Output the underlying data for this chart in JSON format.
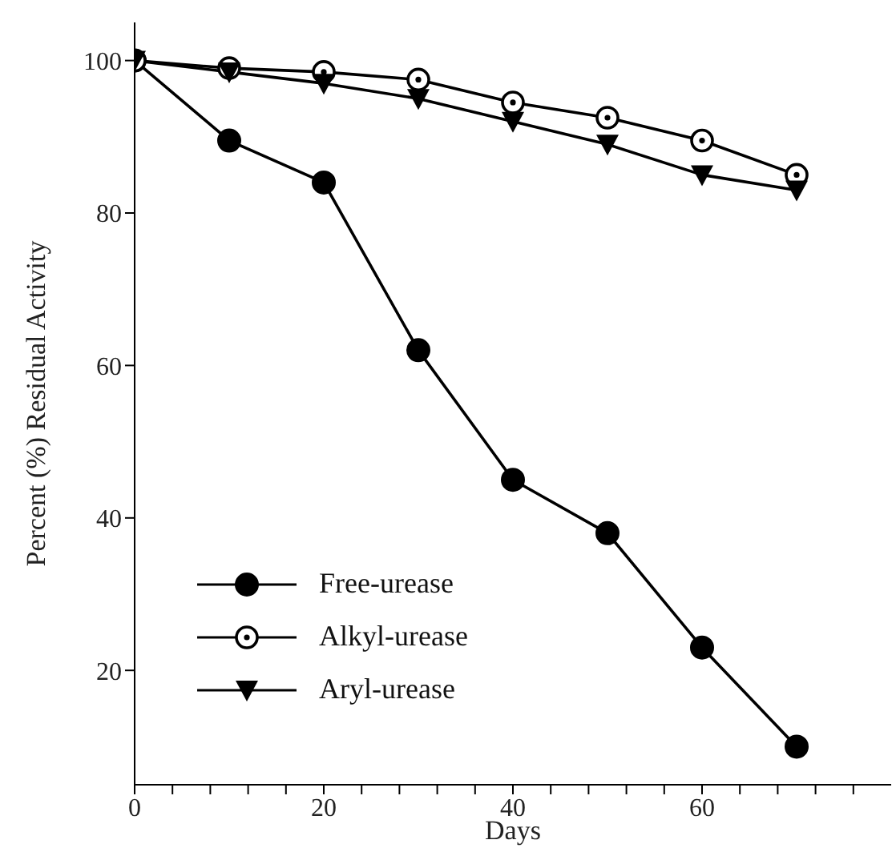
{
  "chart_data": {
    "type": "line",
    "xlabel": "Days",
    "ylabel": "Percent (%) Residual Activity",
    "x": [
      0,
      10,
      20,
      30,
      40,
      50,
      60,
      70
    ],
    "series": [
      {
        "name": "Free-urease",
        "color": "#000000",
        "marker": "circle",
        "values": [
          100,
          89.5,
          84,
          62,
          45,
          38,
          23,
          10
        ]
      },
      {
        "name": "Alkyl-urease",
        "color": "#000000",
        "marker": "dotted-circle",
        "values": [
          100,
          99,
          98.5,
          97.5,
          94.5,
          92.5,
          89.5,
          85
        ]
      },
      {
        "name": "Aryl-urease",
        "color": "#000000",
        "marker": "triangle",
        "values": [
          100,
          98.5,
          97,
          95,
          92,
          89,
          85,
          83
        ]
      }
    ],
    "xlim": [
      0,
      80
    ],
    "xticks": [
      0,
      {
        "value": 4,
        "label": null
      },
      {
        "value": 8,
        "label": null
      },
      {
        "value": 12,
        "label": null
      },
      {
        "value": 16,
        "label": null
      },
      20,
      {
        "value": 24,
        "label": null
      },
      {
        "value": 28,
        "label": null
      },
      {
        "value": 32,
        "label": null
      },
      {
        "value": 36,
        "label": null
      },
      40,
      {
        "value": 44,
        "label": null
      },
      {
        "value": 48,
        "label": null
      },
      {
        "value": 52,
        "label": null
      },
      {
        "value": 56,
        "label": null
      },
      60,
      {
        "value": 64,
        "label": null
      },
      {
        "value": 68,
        "label": null
      },
      {
        "value": 72,
        "label": null
      },
      {
        "value": 76,
        "label": null
      }
    ],
    "ylim": [
      5,
      105
    ],
    "yticks": [
      20,
      40,
      60,
      80,
      100
    ],
    "grid": false,
    "legend": "bottom left",
    "line_style": "solid"
  }
}
